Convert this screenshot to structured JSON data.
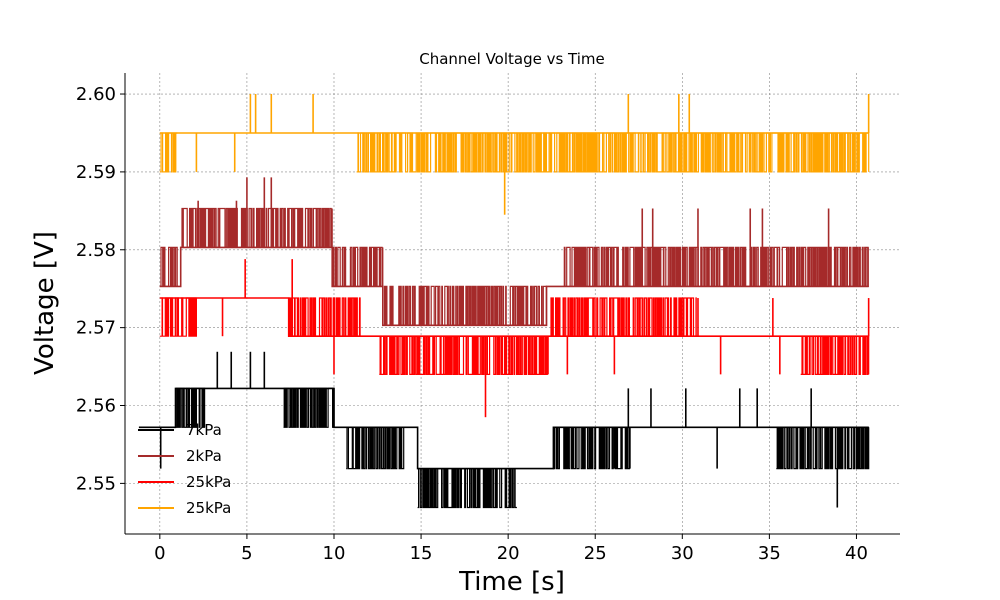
{
  "chart_data": {
    "type": "line",
    "title": "Channel Voltage vs Time",
    "xlabel": "Time [s]",
    "ylabel": "Voltage [V]",
    "xlim": [
      -2,
      42.5
    ],
    "ylim": [
      2.5435,
      2.6027
    ],
    "xticks": [
      0,
      5,
      10,
      15,
      20,
      25,
      30,
      35,
      40
    ],
    "xtick_labels": [
      "0",
      "5",
      "10",
      "15",
      "20",
      "25",
      "30",
      "35",
      "40"
    ],
    "yticks": [
      2.55,
      2.56,
      2.57,
      2.58,
      2.59,
      2.6
    ],
    "ytick_labels": [
      "2.55",
      "2.56",
      "2.57",
      "2.58",
      "2.59",
      "2.60"
    ],
    "grid": true,
    "legend_position": "lower-left",
    "series": [
      {
        "name": "7kPa",
        "color": "#000000",
        "step": 0.0047,
        "start_x": -1.2,
        "end_x": 40.7,
        "levels": [
          {
            "x": [
              -1.2,
              0.9
            ],
            "base": 2.5572
          },
          {
            "x": [
              0.9,
              10.0
            ],
            "base": 2.5622
          },
          {
            "x": [
              10.0,
              14.8
            ],
            "base": 2.5572
          },
          {
            "x": [
              14.8,
              22.6
            ],
            "base": 2.5519
          },
          {
            "x": [
              22.6,
              40.7
            ],
            "base": 2.5572
          }
        ],
        "noise": [
          {
            "x": [
              0.9,
              2.6
            ],
            "low": 2.5572,
            "high": 2.5622
          },
          {
            "x": [
              7.1,
              10.0
            ],
            "low": 2.5572,
            "high": 2.5622
          },
          {
            "x": [
              10.7,
              14.0
            ],
            "low": 2.5519,
            "high": 2.5572
          },
          {
            "x": [
              14.8,
              20.5
            ],
            "low": 2.5469,
            "high": 2.5519
          },
          {
            "x": [
              22.6,
              27.0
            ],
            "low": 2.5519,
            "high": 2.5572
          },
          {
            "x": [
              35.4,
              40.7
            ],
            "low": 2.5519,
            "high": 2.5572
          }
        ],
        "spikes": [
          {
            "x": 0.05,
            "y": 2.5519
          },
          {
            "x": 3.3,
            "y": 2.5669
          },
          {
            "x": 4.1,
            "y": 2.5669
          },
          {
            "x": 5.2,
            "y": 2.5669
          },
          {
            "x": 6.0,
            "y": 2.5669
          },
          {
            "x": 26.9,
            "y": 2.5622
          },
          {
            "x": 28.2,
            "y": 2.5622
          },
          {
            "x": 30.2,
            "y": 2.5622
          },
          {
            "x": 33.3,
            "y": 2.5622
          },
          {
            "x": 34.3,
            "y": 2.5622
          },
          {
            "x": 37.4,
            "y": 2.5622
          },
          {
            "x": 38.9,
            "y": 2.5469
          },
          {
            "x": 26.1,
            "y": 2.5519
          },
          {
            "x": 32.0,
            "y": 2.5519
          }
        ]
      },
      {
        "name": "2kPa",
        "color": "#a52a2a",
        "step": 0.005,
        "start_x": 0.0,
        "end_x": 40.7,
        "levels": [
          {
            "x": [
              0.0,
              1.2
            ],
            "base": 2.5753
          },
          {
            "x": [
              1.2,
              9.9
            ],
            "base": 2.5803
          },
          {
            "x": [
              9.9,
              12.8
            ],
            "base": 2.5753
          },
          {
            "x": [
              12.8,
              22.2
            ],
            "base": 2.5703
          },
          {
            "x": [
              22.2,
              40.7
            ],
            "base": 2.5753
          }
        ],
        "noise": [
          {
            "x": [
              0.0,
              1.0
            ],
            "low": 2.5753,
            "high": 2.5803
          },
          {
            "x": [
              1.2,
              9.9
            ],
            "low": 2.5803,
            "high": 2.5853
          },
          {
            "x": [
              9.9,
              12.8
            ],
            "low": 2.5753,
            "high": 2.5803
          },
          {
            "x": [
              12.8,
              22.2
            ],
            "low": 2.5703,
            "high": 2.5753
          },
          {
            "x": [
              23.2,
              40.7
            ],
            "low": 2.5753,
            "high": 2.5803
          }
        ],
        "spikes": [
          {
            "x": 5.0,
            "y": 2.5893
          },
          {
            "x": 6.0,
            "y": 2.5893
          },
          {
            "x": 6.4,
            "y": 2.5893
          },
          {
            "x": 2.2,
            "y": 2.5863
          },
          {
            "x": 4.4,
            "y": 2.5863
          },
          {
            "x": 27.7,
            "y": 2.5853
          },
          {
            "x": 28.3,
            "y": 2.5853
          },
          {
            "x": 30.9,
            "y": 2.5853
          },
          {
            "x": 34.6,
            "y": 2.5853
          },
          {
            "x": 38.4,
            "y": 2.5853
          },
          {
            "x": 33.9,
            "y": 2.5853
          }
        ]
      },
      {
        "name": "25kPa",
        "color": "#ff0000",
        "step": 0.0049,
        "start_x": 0.0,
        "end_x": 40.7,
        "levels": [
          {
            "x": [
              0.0,
              7.4
            ],
            "base": 2.5738
          },
          {
            "x": [
              7.4,
              12.2
            ],
            "base": 2.5689
          },
          {
            "x": [
              12.2,
              22.3
            ],
            "base": 2.5689
          },
          {
            "x": [
              22.3,
              40.7
            ],
            "base": 2.5689
          }
        ],
        "noise": [
          {
            "x": [
              0.0,
              2.1
            ],
            "low": 2.5689,
            "high": 2.5738
          },
          {
            "x": [
              7.4,
              11.5
            ],
            "low": 2.5689,
            "high": 2.5738
          },
          {
            "x": [
              12.6,
              22.3
            ],
            "low": 2.564,
            "high": 2.5689
          },
          {
            "x": [
              22.3,
              30.8
            ],
            "low": 2.5689,
            "high": 2.5738
          },
          {
            "x": [
              36.8,
              40.7
            ],
            "low": 2.564,
            "high": 2.5689
          }
        ],
        "spikes": [
          {
            "x": 10.0,
            "y": 2.564
          },
          {
            "x": 18.7,
            "y": 2.5585
          },
          {
            "x": 3.6,
            "y": 2.5689
          },
          {
            "x": 4.9,
            "y": 2.5788
          },
          {
            "x": 7.6,
            "y": 2.5788
          },
          {
            "x": 26.1,
            "y": 2.564
          },
          {
            "x": 32.2,
            "y": 2.564
          },
          {
            "x": 35.6,
            "y": 2.564
          },
          {
            "x": 23.4,
            "y": 2.564
          },
          {
            "x": 30.9,
            "y": 2.5738
          },
          {
            "x": 35.2,
            "y": 2.5738
          },
          {
            "x": 40.7,
            "y": 2.5738
          }
        ]
      },
      {
        "name": "25kPa",
        "color": "#ffa500",
        "step": 0.005,
        "start_x": 0.0,
        "end_x": 40.7,
        "levels": [
          {
            "x": [
              0.0,
              40.7
            ],
            "base": 2.595
          }
        ],
        "noise": [
          {
            "x": [
              0.0,
              1.0
            ],
            "low": 2.59,
            "high": 2.595
          },
          {
            "x": [
              11.3,
              40.7
            ],
            "low": 2.59,
            "high": 2.595
          }
        ],
        "spikes": [
          {
            "x": 5.2,
            "y": 2.6
          },
          {
            "x": 5.5,
            "y": 2.6
          },
          {
            "x": 6.4,
            "y": 2.6
          },
          {
            "x": 8.8,
            "y": 2.6
          },
          {
            "x": 26.9,
            "y": 2.6
          },
          {
            "x": 29.8,
            "y": 2.6
          },
          {
            "x": 30.4,
            "y": 2.6
          },
          {
            "x": 40.7,
            "y": 2.6
          },
          {
            "x": 19.8,
            "y": 2.5845
          },
          {
            "x": 2.1,
            "y": 2.59
          },
          {
            "x": 4.3,
            "y": 2.59
          }
        ]
      }
    ]
  }
}
